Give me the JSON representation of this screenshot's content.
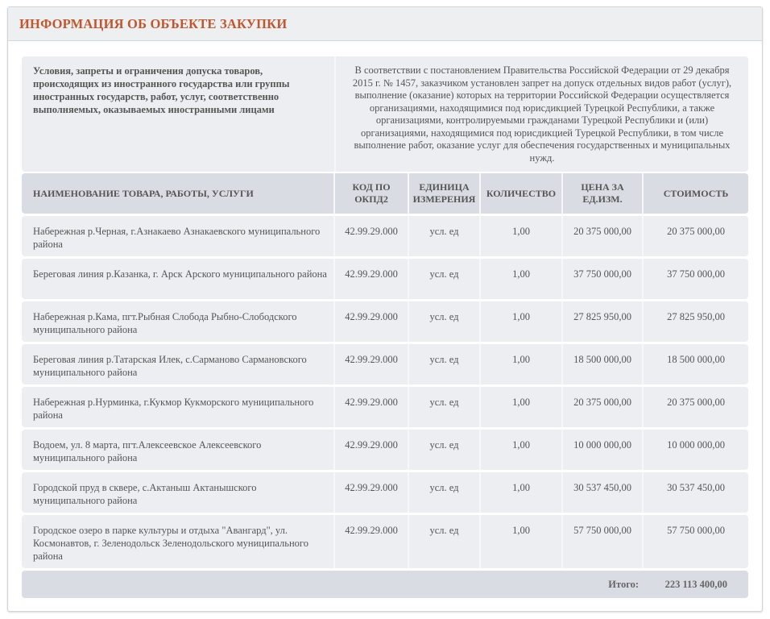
{
  "title": "ИНФОРМАЦИЯ ОБ ОБЪЕКТЕ ЗАКУПКИ",
  "info": {
    "label": "Условия, запреты и ограничения допуска товаров, происходящих из иностранного государства или группы иностранных государств, работ, услуг, соответственно выполняемых, оказываемых иностранными лицами",
    "value": "В соответствии с постановлением Правительства Российской Федерации от 29 декабря 2015 г. № 1457, заказчиком установлен запрет на допуск отдельных видов работ (услуг), выполнение (оказание) которых на территории Российской Федерации осуществляется организациями, находящимися под юрисдикцией Турецкой Республики, а также организациями, контролируемыми гражданами Турецкой Республики и (или) организациями, находящимися под юрисдикцией Турецкой Республики, в том числе выполнение работ, оказание услуг для обеспечения государственных и муниципальных нужд."
  },
  "columns": [
    "НАИМЕНОВАНИЕ ТОВАРА, РАБОТЫ, УСЛУГИ",
    "КОД ПО ОКПД2",
    "ЕДИНИЦА ИЗМЕРЕНИЯ",
    "КОЛИЧЕСТВО",
    "ЦЕНА ЗА ЕД.ИЗМ.",
    "СТОИМОСТЬ"
  ],
  "rows": [
    [
      "Набережная р.Черная, г.Азнакаево Азнакаевского муниципального района",
      "42.99.29.000",
      "усл. ед",
      "1,00",
      "20 375 000,00",
      "20 375 000,00"
    ],
    [
      "Береговая линия р.Казанка, г. Арск Арского муниципального района",
      "42.99.29.000",
      "усл. ед",
      "1,00",
      "37 750 000,00",
      "37 750 000,00"
    ],
    [
      "Набережная р.Кама, пгт.Рыбная Слобода Рыбно-Слободского муниципального района",
      "42.99.29.000",
      "усл. ед",
      "1,00",
      "27 825 950,00",
      "27 825 950,00"
    ],
    [
      "Береговая линия р.Татарская Илек, с.Сарманово Сармановского муниципального района",
      "42.99.29.000",
      "усл. ед",
      "1,00",
      "18 500 000,00",
      "18 500 000,00"
    ],
    [
      "Набережная р.Нурминка, г.Кукмор Кукморского муниципального района",
      "42.99.29.000",
      "усл. ед",
      "1,00",
      "20 375 000,00",
      "20 375 000,00"
    ],
    [
      "Водоем, ул. 8 марта, пгт.Алексеевское Алексеевского муниципального района",
      "42.99.29.000",
      "усл. ед",
      "1,00",
      "10 000 000,00",
      "10 000 000,00"
    ],
    [
      "Городской пруд в сквере, с.Актаныш Актанышского муниципального района",
      "42.99.29.000",
      "усл. ед",
      "1,00",
      "30 537 450,00",
      "30 537 450,00"
    ],
    [
      "Городское озеро в парке культуры и отдыха \"Авангард\", ул. Космонавтов, г. Зеленодольск Зеленодольского муниципального района",
      "42.99.29.000",
      "усл. ед",
      "1,00",
      "57 750 000,00",
      "57 750 000,00"
    ]
  ],
  "total": {
    "label": "Итого:",
    "value": "223 113 400,00"
  }
}
